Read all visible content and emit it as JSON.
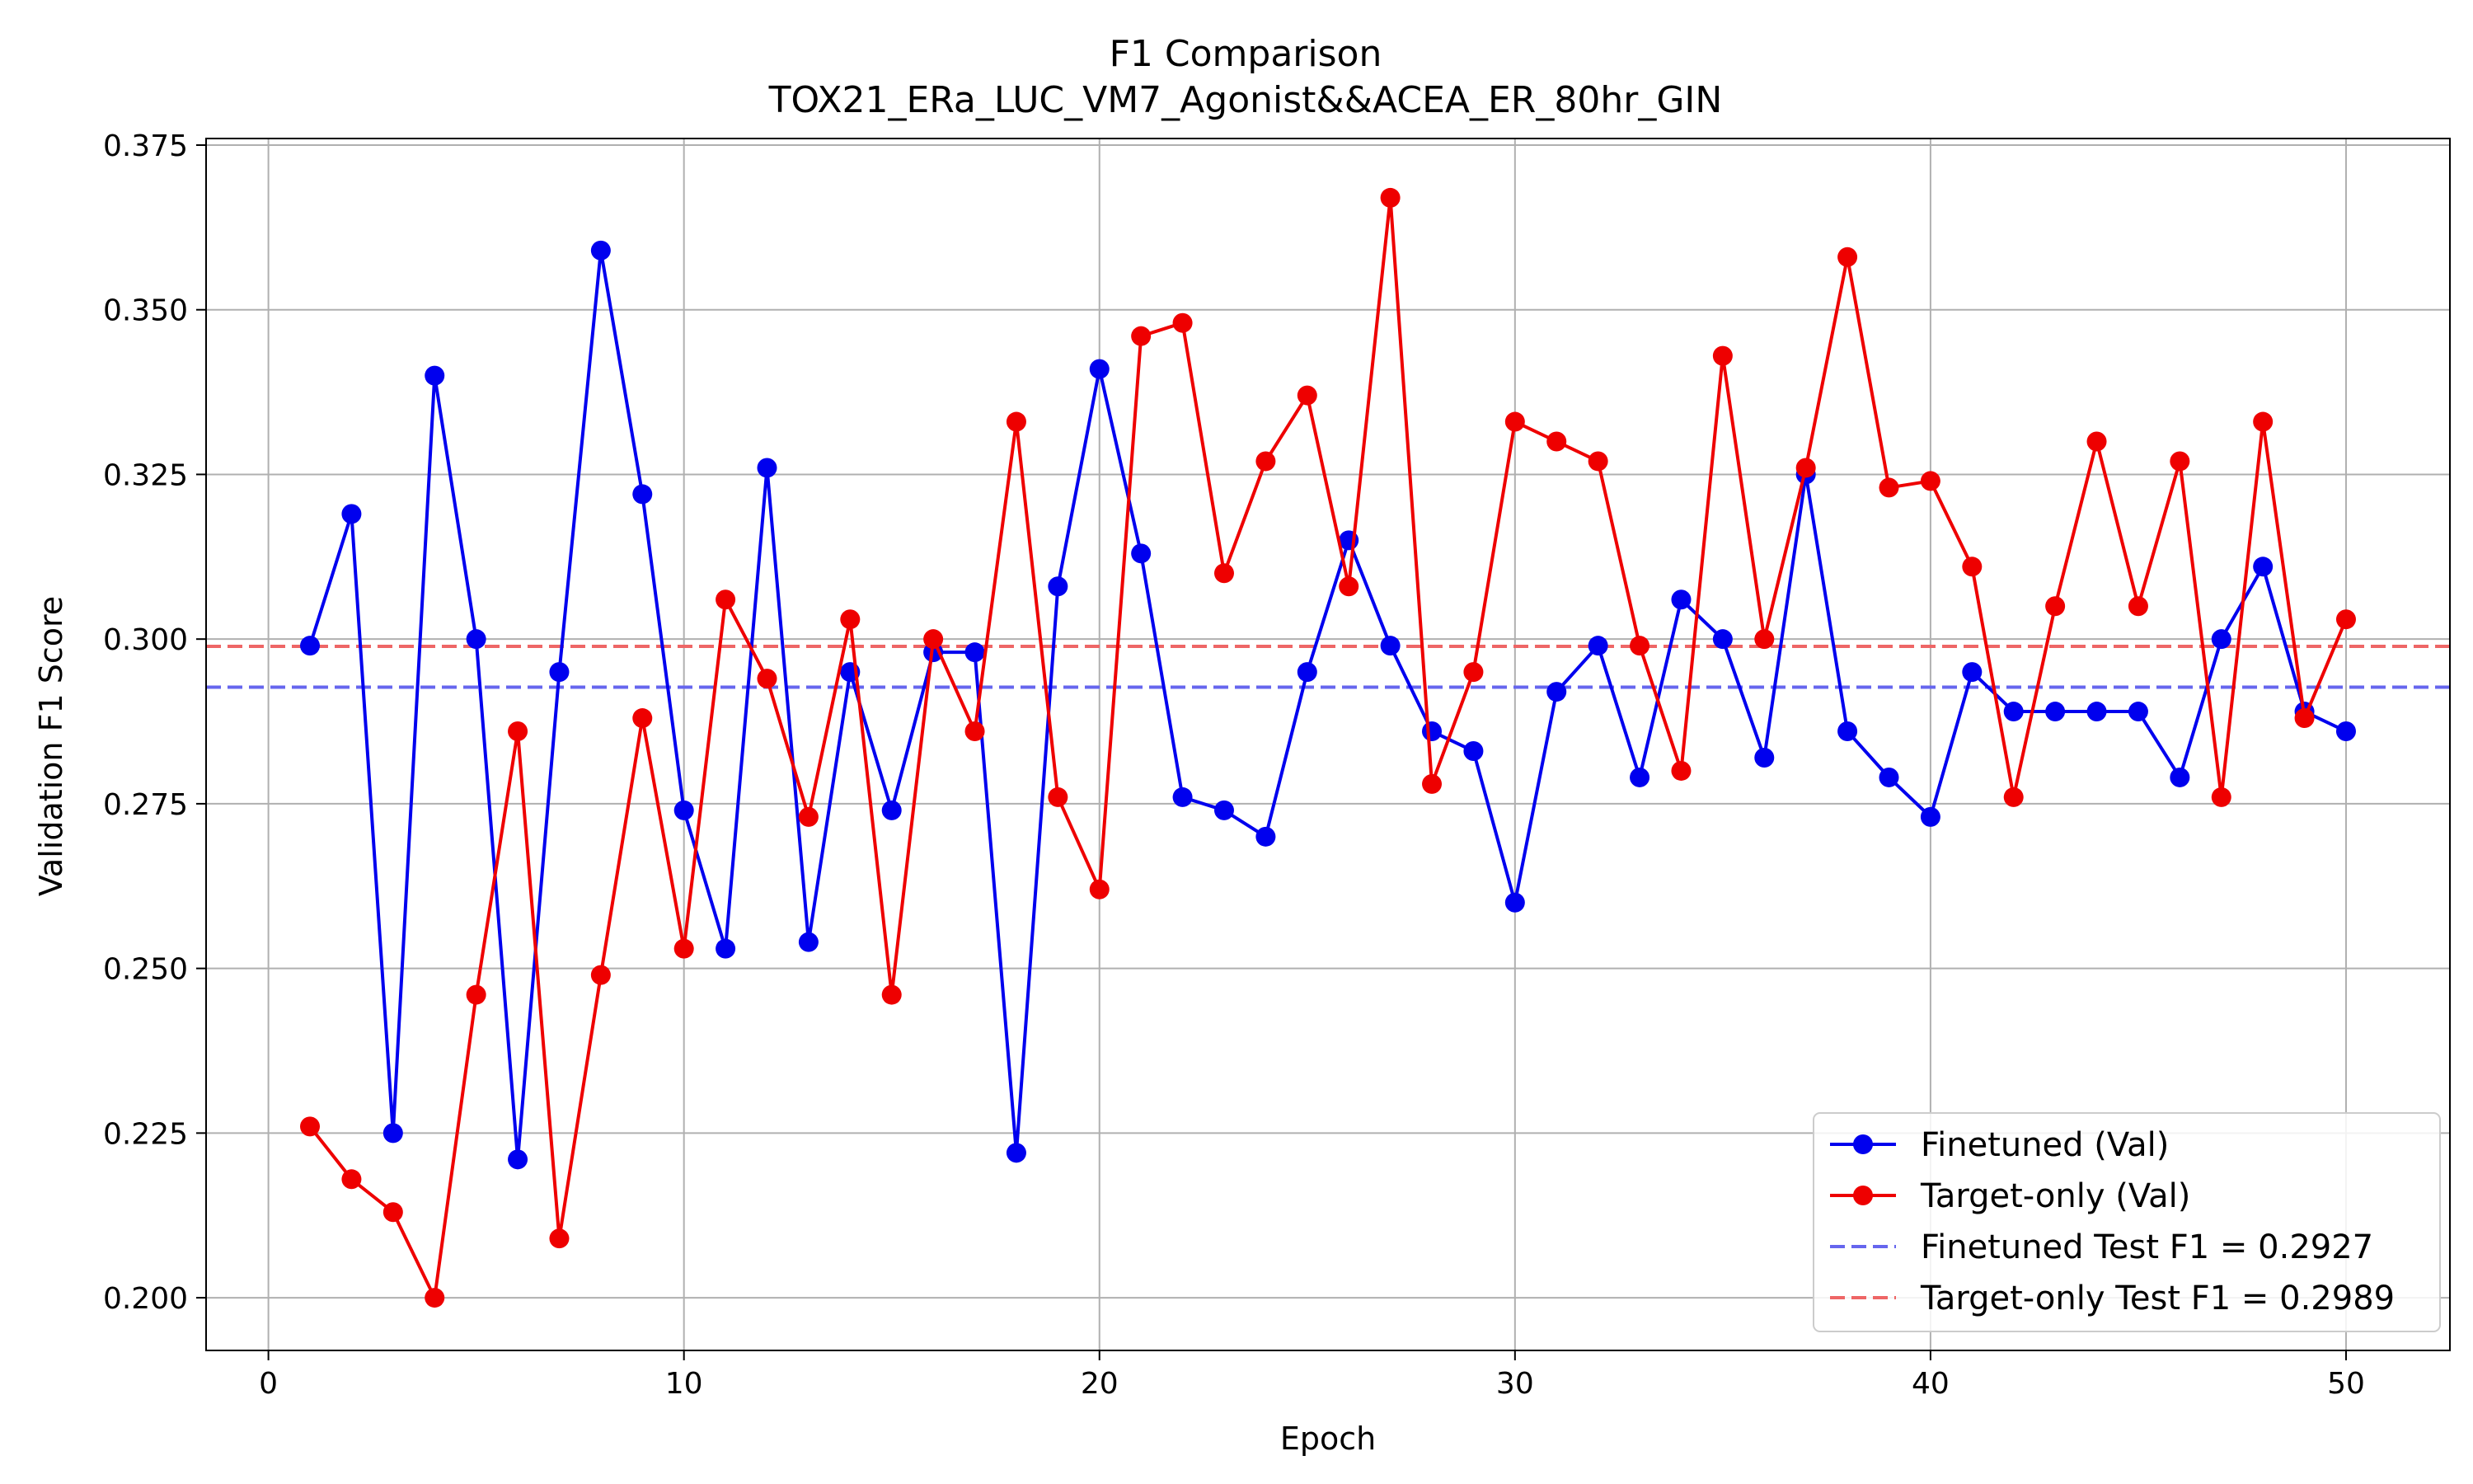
{
  "chart_data": {
    "type": "line",
    "title": "F1 Comparison",
    "subtitle": "TOX21_ERa_LUC_VM7_Agonist&&ACEA_ER_80hr_GIN",
    "xlabel": "Epoch",
    "ylabel": "Validation F1 Score",
    "xlim": [
      -1.5,
      52.5
    ],
    "ylim": [
      0.192,
      0.376
    ],
    "xticks": [
      0,
      10,
      20,
      30,
      40,
      50
    ],
    "xtick_labels": [
      "0",
      "10",
      "20",
      "30",
      "40",
      "50"
    ],
    "yticks": [
      0.2,
      0.225,
      0.25,
      0.275,
      0.3,
      0.325,
      0.35,
      0.375
    ],
    "ytick_labels": [
      "0.200",
      "0.225",
      "0.250",
      "0.275",
      "0.300",
      "0.325",
      "0.350",
      "0.375"
    ],
    "grid": true,
    "legend_position": "lower-right",
    "x": [
      1,
      2,
      3,
      4,
      5,
      6,
      7,
      8,
      9,
      10,
      11,
      12,
      13,
      14,
      15,
      16,
      17,
      18,
      19,
      20,
      21,
      22,
      23,
      24,
      25,
      26,
      27,
      28,
      29,
      30,
      31,
      32,
      33,
      34,
      35,
      36,
      37,
      38,
      39,
      40,
      41,
      42,
      43,
      44,
      45,
      46,
      47,
      48,
      49,
      50
    ],
    "series": [
      {
        "name": "Finetuned (Val)",
        "color": "#0000ee",
        "values": [
          0.299,
          0.319,
          0.225,
          0.34,
          0.3,
          0.221,
          0.295,
          0.359,
          0.322,
          0.274,
          0.253,
          0.326,
          0.254,
          0.295,
          0.274,
          0.298,
          0.298,
          0.222,
          0.308,
          0.341,
          0.313,
          0.276,
          0.274,
          0.27,
          0.295,
          0.315,
          0.299,
          0.286,
          0.283,
          0.26,
          0.292,
          0.299,
          0.279,
          0.306,
          0.3,
          0.282,
          0.325,
          0.286,
          0.279,
          0.273,
          0.295,
          0.289,
          0.289,
          0.289,
          0.289,
          0.279,
          0.3,
          0.311,
          0.289,
          0.286
        ]
      },
      {
        "name": "Target-only (Val)",
        "color": "#ee0000",
        "values": [
          0.226,
          0.218,
          0.213,
          0.2,
          0.246,
          0.286,
          0.209,
          0.249,
          0.288,
          0.253,
          0.306,
          0.294,
          0.273,
          0.303,
          0.246,
          0.3,
          0.286,
          0.333,
          0.276,
          0.262,
          0.346,
          0.348,
          0.31,
          0.327,
          0.337,
          0.308,
          0.367,
          0.278,
          0.295,
          0.333,
          0.33,
          0.327,
          0.299,
          0.28,
          0.343,
          0.3,
          0.326,
          0.358,
          0.323,
          0.324,
          0.311,
          0.276,
          0.305,
          0.33,
          0.305,
          0.327,
          0.276,
          0.333,
          0.288,
          0.303
        ]
      }
    ],
    "reference_lines": [
      {
        "name": "Finetuned Test F1 = 0.2927",
        "value": 0.2927,
        "color": "#6666ee",
        "style": "dashed"
      },
      {
        "name": "Target-only Test F1 = 0.2989",
        "value": 0.2989,
        "color": "#ee6666",
        "style": "dashed"
      }
    ]
  }
}
